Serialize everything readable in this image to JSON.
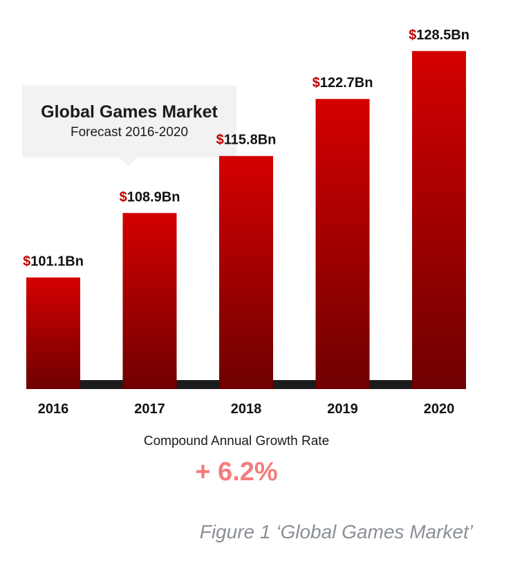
{
  "chart_data": {
    "type": "bar",
    "title": "Global Games Market",
    "subtitle": "Forecast 2016-2020",
    "categories": [
      "2016",
      "2017",
      "2018",
      "2019",
      "2020"
    ],
    "values": [
      101.1,
      108.9,
      115.8,
      122.7,
      128.5
    ],
    "value_labels": [
      "101.1Bn",
      "108.9Bn",
      "115.8Bn",
      "122.7Bn",
      "128.5Bn"
    ],
    "currency_symbol": "$",
    "grid": false,
    "legend": "none",
    "colors": {
      "bar_top": "#d40000",
      "bar_bottom": "#6e0000",
      "baseline": "#1c1c1c",
      "currency": "#c00000",
      "label": "#111111"
    }
  },
  "cagr": {
    "label": "Compound Annual Growth Rate",
    "value": "+ 6.2%"
  },
  "caption": "Figure 1 ‘Global Games Market’"
}
